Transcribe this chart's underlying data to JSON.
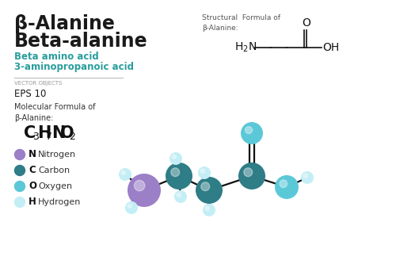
{
  "bg_color": "#ffffff",
  "title1": "β-Alanine",
  "title2": "Beta-alanine",
  "subtitle": "Beta amino acid\n3-aminopropanoic acid",
  "vector_label": "VECTOR OBJECTS",
  "eps_label": "EPS 10",
  "mol_formula_label": "Molecular Formula of\nβ-Alanine:",
  "struct_formula_label": "Structural  Formula of\nβ-Alanine:",
  "legend_items": [
    {
      "symbol": "N",
      "label": "Nitrogen",
      "color": "#9b7fc7"
    },
    {
      "symbol": "C",
      "label": "Carbon",
      "color": "#2e7d87"
    },
    {
      "symbol": "O",
      "label": "Oxygen",
      "color": "#5bc8d8"
    },
    {
      "symbol": "H",
      "label": "Hydrogen",
      "color": "#c4eef5"
    }
  ],
  "atom_colors": {
    "N": "#9b7fc7",
    "C": "#2e7d87",
    "O_dark": "#5bc8d8",
    "H": "#c4eef5"
  },
  "title_color": "#1a1a1a",
  "subtitle_color": "#2a9d9d",
  "vector_color": "#999999",
  "mol_label_color": "#333333"
}
